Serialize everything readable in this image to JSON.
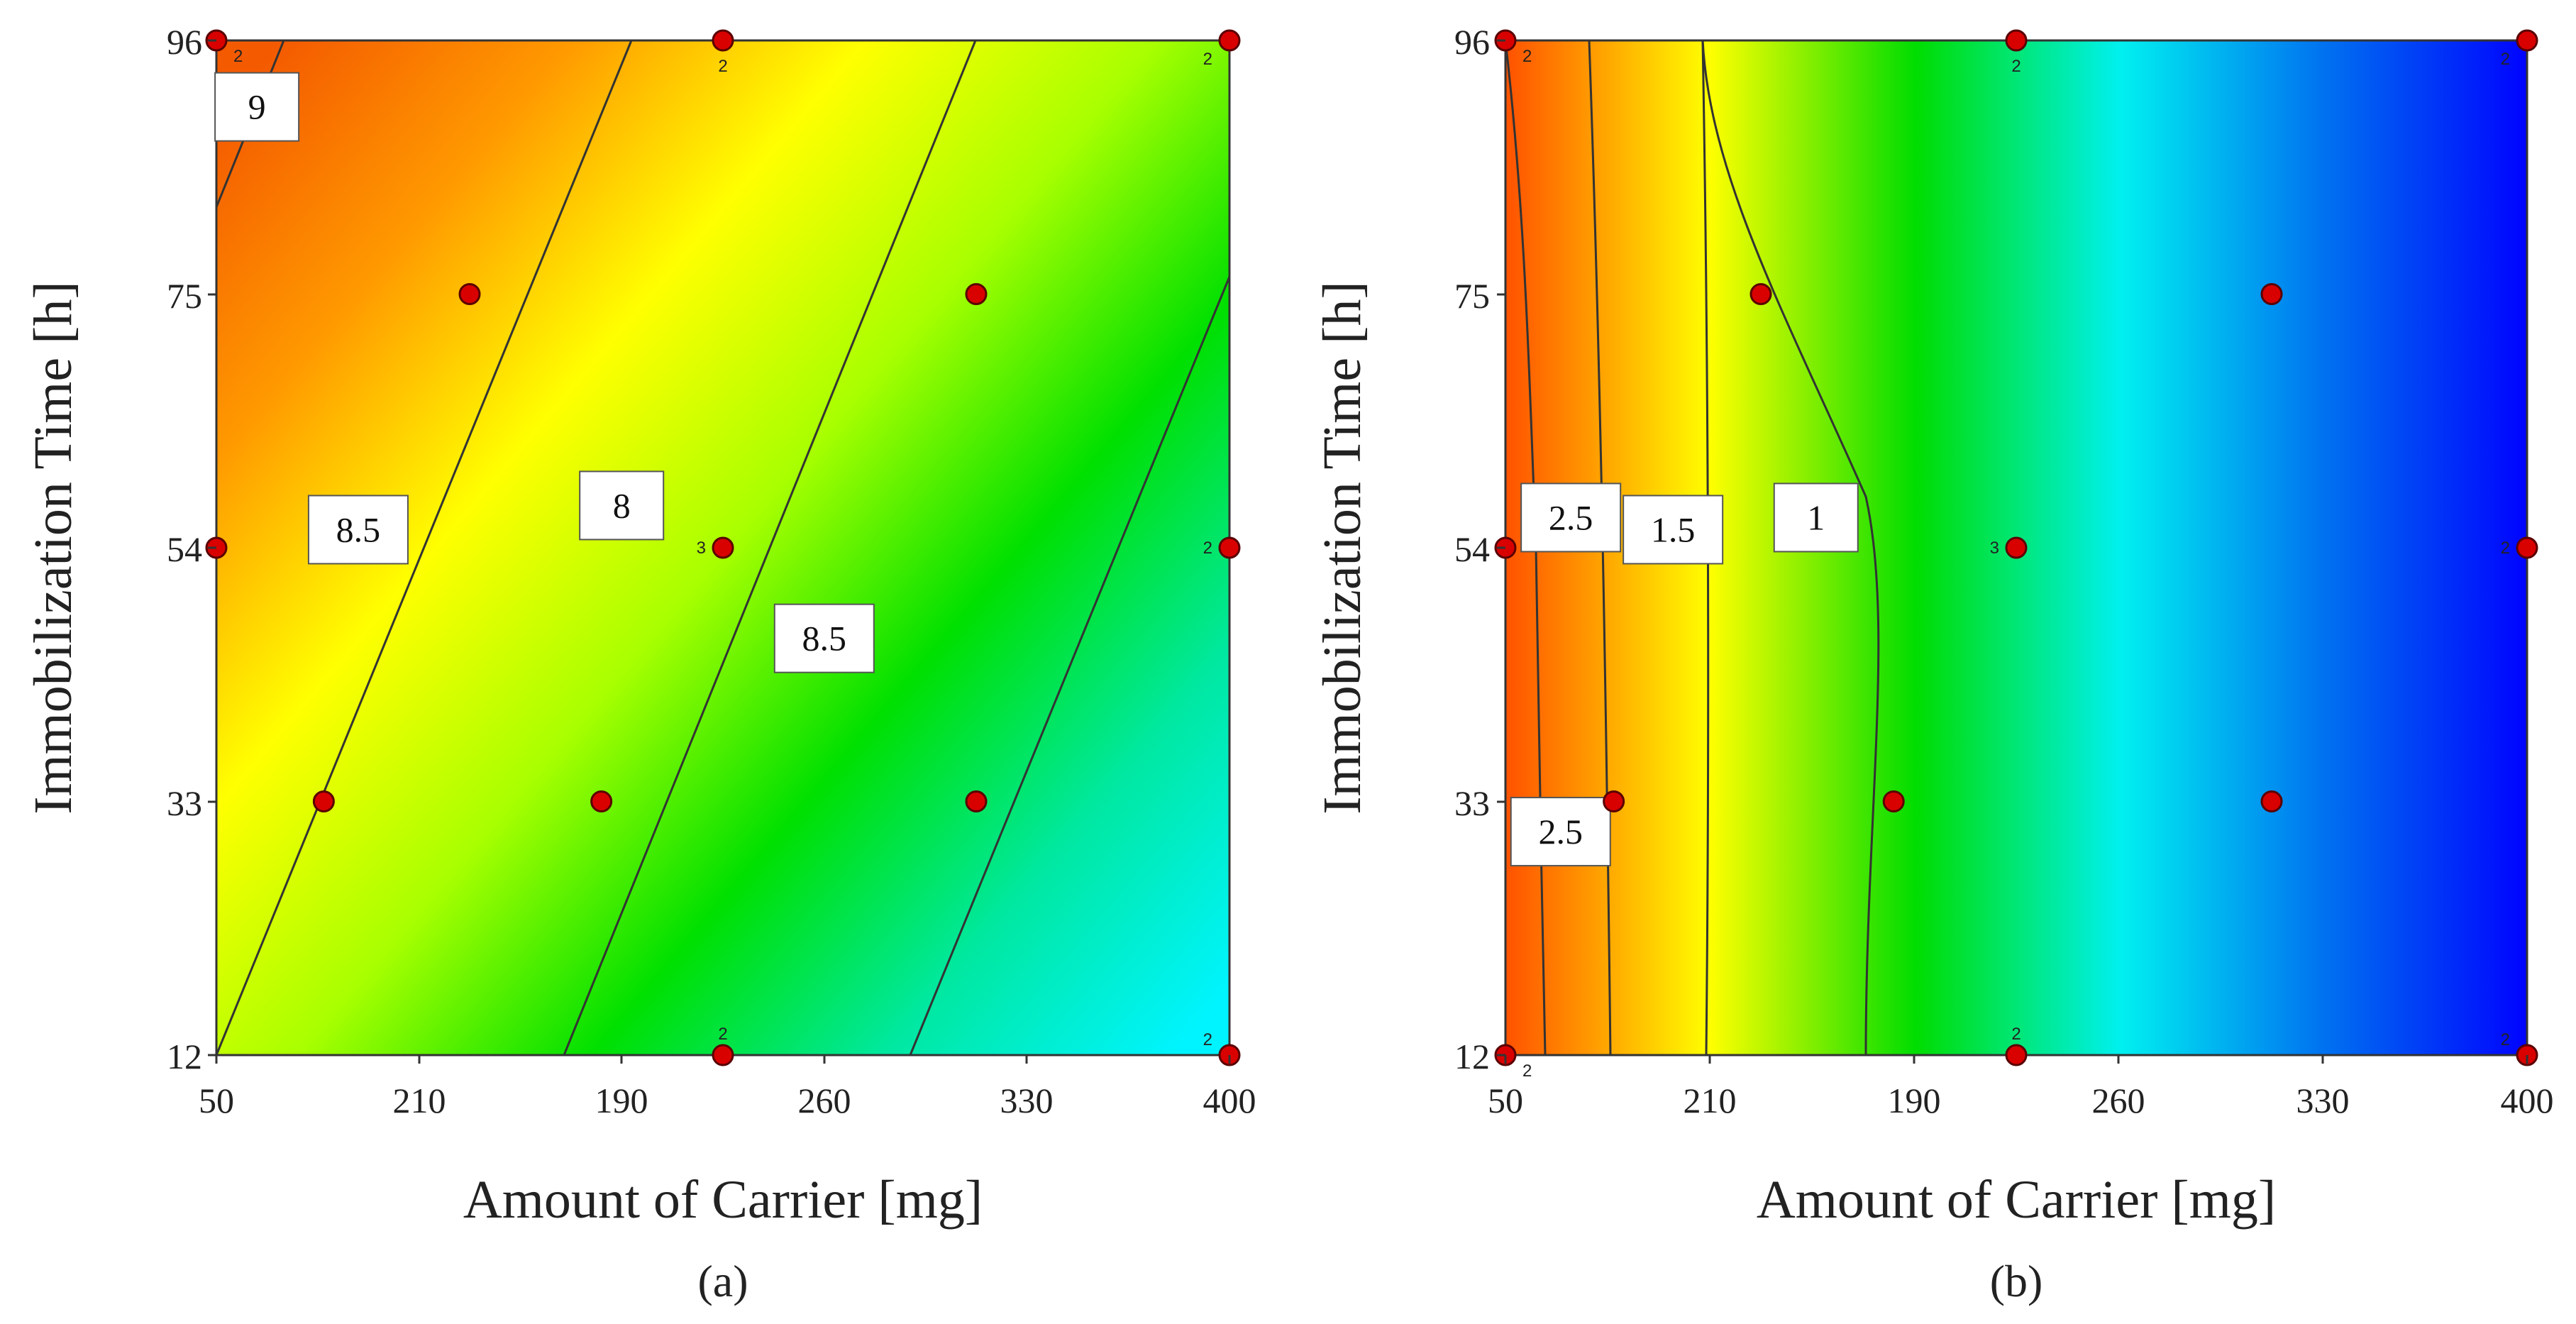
{
  "chart_data": [
    {
      "type": "contour",
      "panel_label": "(a)",
      "xlabel": "Amount of Carrier [mg]",
      "ylabel": "Immobilization Time [h]",
      "x_tick_labels": [
        "50",
        "210",
        "190",
        "260",
        "330",
        "400"
      ],
      "y_ticks": [
        12,
        33,
        54,
        75,
        96
      ],
      "xlim": [
        0,
        5
      ],
      "ylim": [
        12,
        96
      ],
      "gradient_colors": [
        "#f45a00",
        "#ff9a00",
        "#ffff00",
        "#a8ff00",
        "#00e000",
        "#00e8a0",
        "#00f4ff"
      ],
      "contour_labels": [
        {
          "text": "9",
          "x": 0.2,
          "y": 90.5
        },
        {
          "text": "8.5",
          "x": 0.7,
          "y": 55.5
        },
        {
          "text": "8",
          "x": 2.0,
          "y": 57.5
        },
        {
          "text": "8.5",
          "x": 3.0,
          "y": 46.5
        }
      ],
      "design_points": [
        {
          "x": 0,
          "y": 96,
          "reps": "2"
        },
        {
          "x": 2.5,
          "y": 96,
          "reps": "2"
        },
        {
          "x": 5,
          "y": 96,
          "reps": "2"
        },
        {
          "x": 1.25,
          "y": 75,
          "reps": ""
        },
        {
          "x": 3.75,
          "y": 75,
          "reps": ""
        },
        {
          "x": 0,
          "y": 54,
          "reps": ""
        },
        {
          "x": 2.5,
          "y": 54,
          "reps": "3"
        },
        {
          "x": 5,
          "y": 54,
          "reps": "2"
        },
        {
          "x": 0.53,
          "y": 33,
          "reps": ""
        },
        {
          "x": 1.9,
          "y": 33,
          "reps": ""
        },
        {
          "x": 3.75,
          "y": 33,
          "reps": ""
        },
        {
          "x": 2.5,
          "y": 12,
          "reps": "2"
        },
        {
          "x": 5,
          "y": 12,
          "reps": "2"
        }
      ]
    },
    {
      "type": "contour",
      "panel_label": "(b)",
      "xlabel": "Amount of Carrier [mg]",
      "ylabel": "Immobilization Time [h]",
      "x_tick_labels": [
        "50",
        "210",
        "190",
        "260",
        "330",
        "400"
      ],
      "y_ticks": [
        12,
        33,
        54,
        75,
        96
      ],
      "xlim": [
        0,
        5
      ],
      "ylim": [
        12,
        96
      ],
      "gradient_colors": [
        "#ff5000",
        "#ffff00",
        "#00dd00",
        "#00f0f0",
        "#0070f0",
        "#0000ff"
      ],
      "contour_labels": [
        {
          "text": "2.5",
          "x": 0.32,
          "y": 56.5
        },
        {
          "text": "1.5",
          "x": 0.82,
          "y": 55.5
        },
        {
          "text": "1",
          "x": 1.52,
          "y": 56.5
        },
        {
          "text": "2.5",
          "x": 0.27,
          "y": 30.5
        }
      ],
      "design_points": [
        {
          "x": 0,
          "y": 96,
          "reps": "2"
        },
        {
          "x": 2.5,
          "y": 96,
          "reps": "2"
        },
        {
          "x": 5,
          "y": 96,
          "reps": "2"
        },
        {
          "x": 1.25,
          "y": 75,
          "reps": ""
        },
        {
          "x": 3.75,
          "y": 75,
          "reps": ""
        },
        {
          "x": 0,
          "y": 54,
          "reps": ""
        },
        {
          "x": 2.5,
          "y": 54,
          "reps": "3"
        },
        {
          "x": 5,
          "y": 54,
          "reps": "2"
        },
        {
          "x": 0.53,
          "y": 33,
          "reps": ""
        },
        {
          "x": 1.9,
          "y": 33,
          "reps": ""
        },
        {
          "x": 3.75,
          "y": 33,
          "reps": ""
        },
        {
          "x": 0,
          "y": 12,
          "reps": "2"
        },
        {
          "x": 2.5,
          "y": 12,
          "reps": "2"
        },
        {
          "x": 5,
          "y": 12,
          "reps": "2"
        }
      ]
    }
  ]
}
